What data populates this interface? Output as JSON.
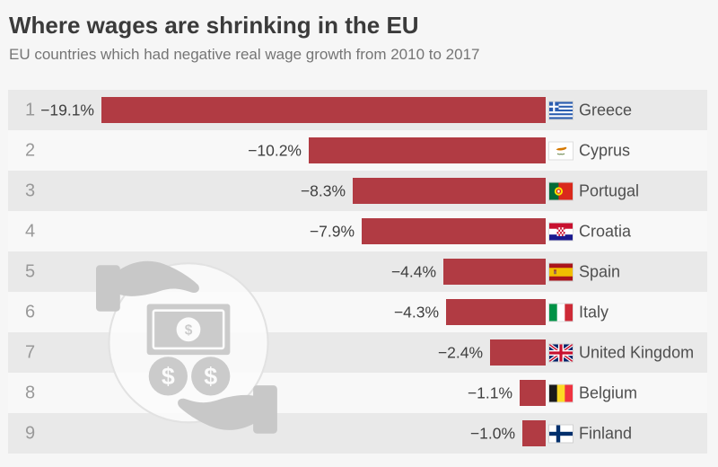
{
  "header": {
    "title": "Where wages are shrinking in the EU",
    "subtitle": "EU countries which had negative real wage growth from 2010 to 2017"
  },
  "chart_data": {
    "type": "bar",
    "orientation": "horizontal",
    "title": "Where wages are shrinking in the EU",
    "subtitle": "EU countries which had negative real wage growth from 2010 to 2017",
    "unit": "%",
    "xlim": [
      -19.1,
      0
    ],
    "bar_color": "#b13b43",
    "ranks": [
      1,
      2,
      3,
      4,
      5,
      6,
      7,
      8,
      9
    ],
    "categories": [
      "Greece",
      "Cyprus",
      "Portugal",
      "Croatia",
      "Spain",
      "Italy",
      "United Kingdom",
      "Belgium",
      "Finland"
    ],
    "values": [
      -19.1,
      -10.2,
      -8.3,
      -7.9,
      -4.4,
      -4.3,
      -2.4,
      -1.1,
      -1.0
    ],
    "labels": [
      "−19.1%",
      "−10.2%",
      "−8.3%",
      "−7.9%",
      "−4.4%",
      "−4.3%",
      "−2.4%",
      "−1.1%",
      "−1.0%"
    ],
    "flags": [
      "greece",
      "cyprus",
      "portugal",
      "croatia",
      "spain",
      "italy",
      "uk",
      "belgium",
      "finland"
    ],
    "legend": [],
    "grid": false
  },
  "icons": {
    "watermark": "hand-giving-money-icon"
  },
  "style": {
    "background": "#f6f6f6",
    "row_odd": "#e9e9e9",
    "row_even": "#f8f8f8",
    "bar": "#b13b43",
    "title_color": "#3b3b3b",
    "subtitle_color": "#757575"
  }
}
